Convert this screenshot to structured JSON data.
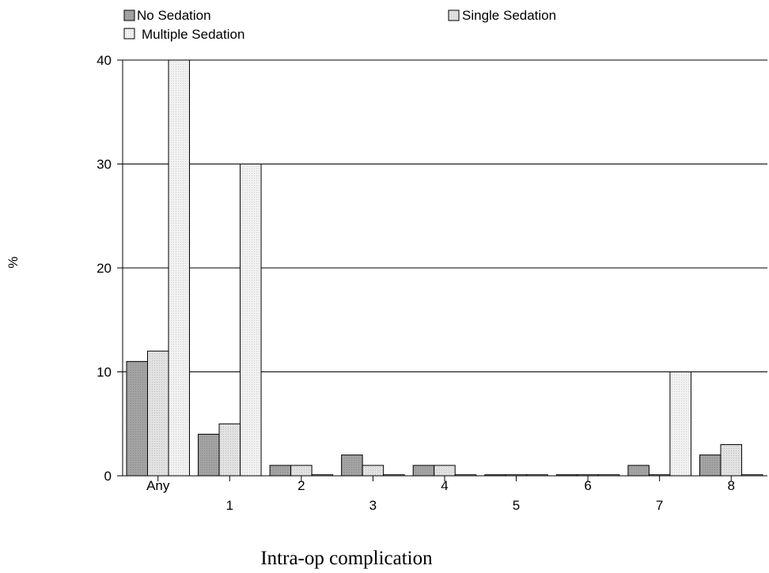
{
  "chart_data": {
    "type": "bar",
    "categories": [
      "Any",
      "1",
      "2",
      "3",
      "4",
      "5",
      "6",
      "7",
      "8"
    ],
    "series": [
      {
        "name": "No Sedation",
        "values": [
          11,
          4,
          1,
          2,
          1,
          0.1,
          0.1,
          1,
          2
        ],
        "color": "#999999"
      },
      {
        "name": "Single Sedation",
        "values": [
          12,
          5,
          1,
          1,
          1,
          0.1,
          0.1,
          0.1,
          3
        ],
        "color": "#dcdcdc"
      },
      {
        "name": "Multiple Sedation",
        "values": [
          40,
          30,
          0.1,
          0.1,
          0.1,
          0.1,
          0.1,
          10,
          0.1
        ],
        "color": "#ececec"
      }
    ],
    "title": "",
    "xlabel": "Intra-op complication",
    "ylabel": "%",
    "ylim": [
      0,
      40
    ],
    "yticks": [
      "0",
      "10",
      "20",
      "30",
      "40"
    ],
    "grid": true,
    "legend_position": "top"
  }
}
